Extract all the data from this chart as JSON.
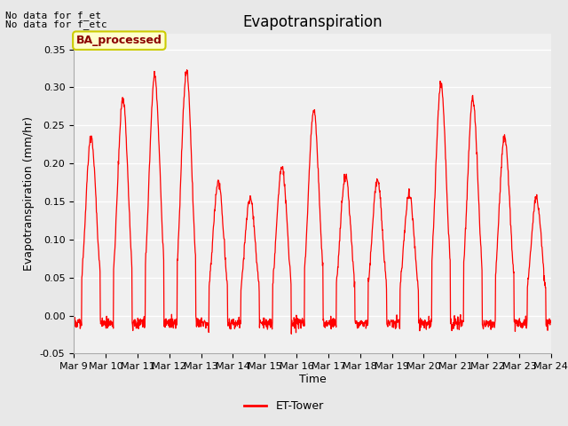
{
  "title": "Evapotranspiration",
  "ylabel": "Evapotranspiration (mm/hr)",
  "xlabel": "Time",
  "ylim": [
    -0.05,
    0.37
  ],
  "yticks": [
    -0.05,
    0.0,
    0.05,
    0.1,
    0.15,
    0.2,
    0.25,
    0.3,
    0.35
  ],
  "fig_bg_color": "#e8e8e8",
  "plot_bg_color": "#e8e8e8",
  "inner_bg_color": "#f0f0f0",
  "line_color": "red",
  "annotation_text1": "No data for f_et",
  "annotation_text2": "No data for f_etc",
  "legend_label": "ET-Tower",
  "legend_box_label": "BA_processed",
  "legend_box_color": "#ffffcc",
  "legend_box_border": "#cccc00",
  "title_fontsize": 12,
  "axis_fontsize": 9,
  "tick_fontsize": 8,
  "n_days": 15,
  "xtick_labels": [
    "Mar 9",
    "Mar 10",
    "Mar 11",
    "Mar 12",
    "Mar 13",
    "Mar 14",
    "Mar 15",
    "Mar 16",
    "Mar 17",
    "Mar 18",
    "Mar 19",
    "Mar 20",
    "Mar 21",
    "Mar 22",
    "Mar 23",
    "Mar 24"
  ],
  "daily_peaks": [
    0.235,
    0.285,
    0.315,
    0.32,
    0.175,
    0.155,
    0.195,
    0.27,
    0.185,
    0.178,
    0.16,
    0.305,
    0.285,
    0.235,
    0.155
  ],
  "n_per_day": 96
}
